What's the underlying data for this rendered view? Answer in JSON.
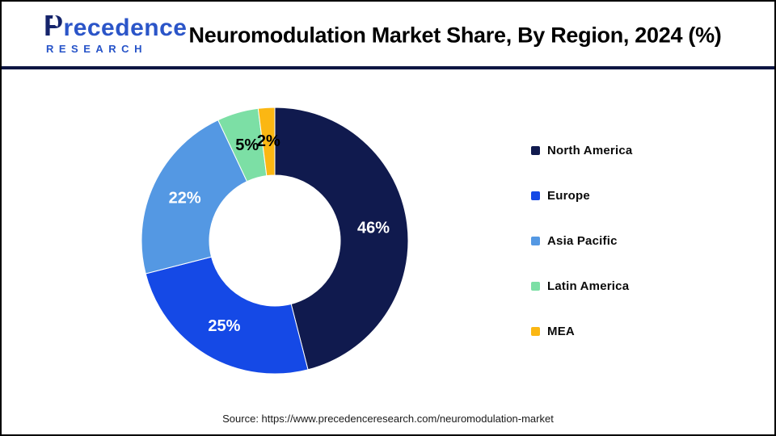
{
  "logo": {
    "line1": "Precedence",
    "line2": "RESEARCH"
  },
  "chart_data": {
    "type": "pie",
    "donut": true,
    "title": "Neuromodulation Market Share, By Region, 2024 (%)",
    "categories": [
      "North America",
      "Europe",
      "Asia Pacific",
      "Latin America",
      "MEA"
    ],
    "values": [
      46,
      25,
      22,
      5,
      2
    ],
    "labels": [
      "46%",
      "25%",
      "22%",
      "5%",
      "2%"
    ],
    "colors": [
      "#101A4E",
      "#1549E6",
      "#5498E3",
      "#7CDFA5",
      "#FBB713"
    ],
    "label_colors": [
      "#ffffff",
      "#ffffff",
      "#ffffff",
      "#000000",
      "#000000"
    ],
    "start_angle": 0,
    "center": [
      338,
      296
    ],
    "outer_radius": 165,
    "inner_radius": 81,
    "legend_position": "right",
    "grid": false
  },
  "source": {
    "text": "Source: https://www.precedenceresearch.com/neuromodulation-market"
  },
  "colors": {
    "brand_navy": "#15246B",
    "brand_blue": "#2B55C8",
    "header_rule": "#0D1642",
    "canvas_border": "#000000"
  }
}
